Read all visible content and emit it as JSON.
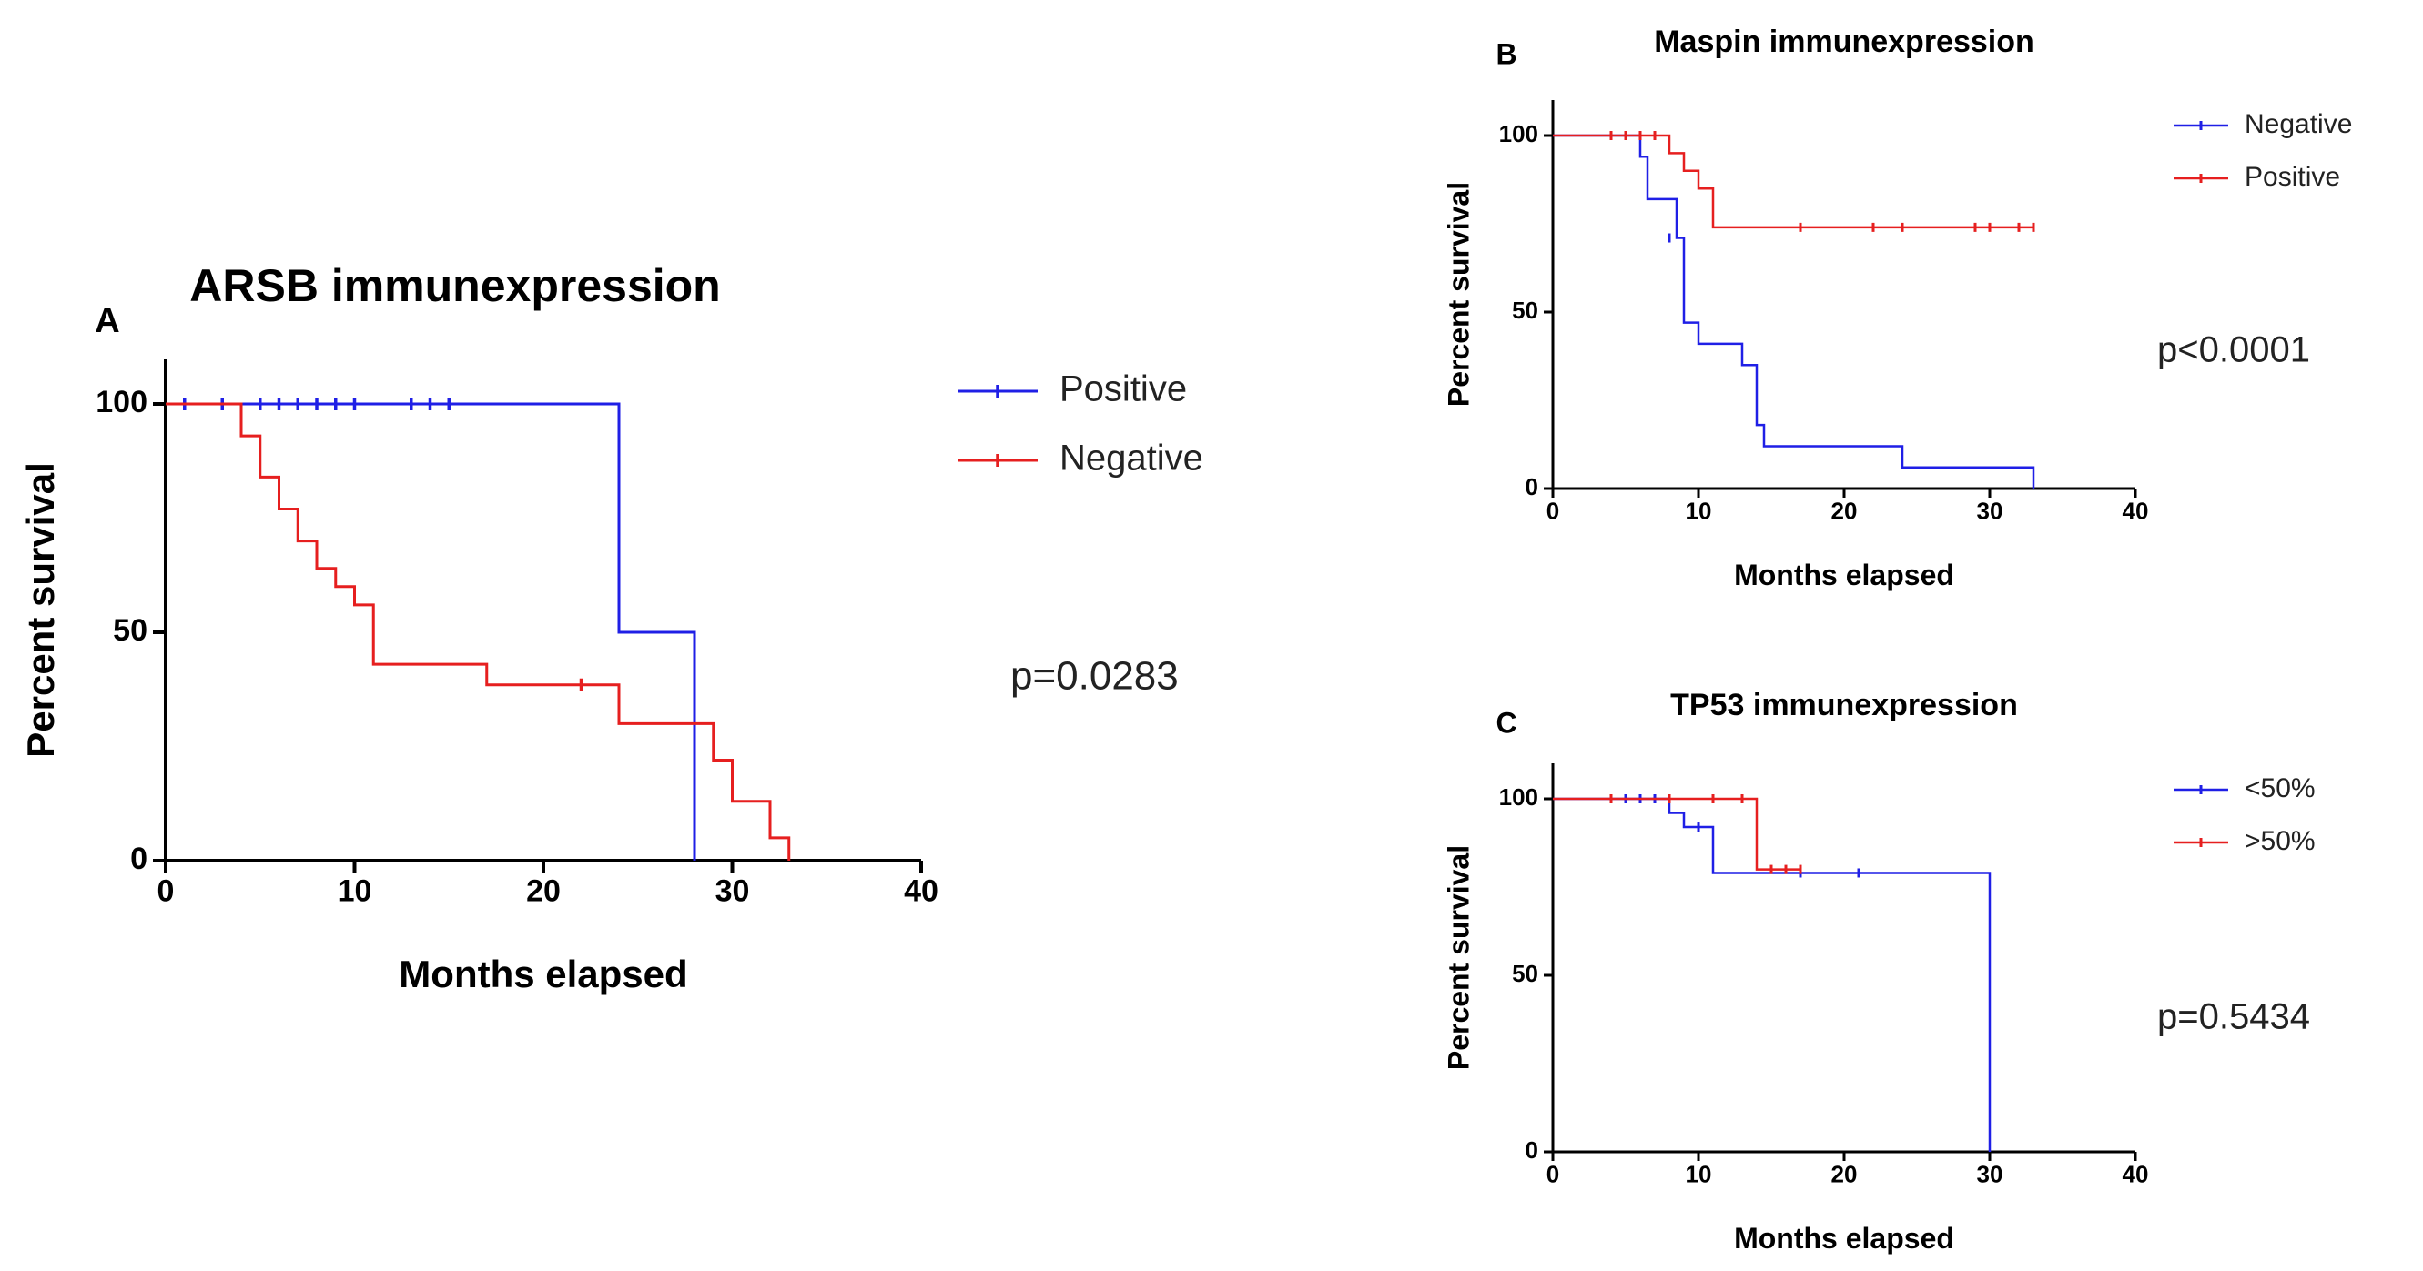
{
  "chart_data": [
    {
      "panel_label": "A",
      "type": "line",
      "step": true,
      "title": "ARSB immunexpression",
      "xlabel": "Months elapsed",
      "ylabel": "Percent survival",
      "xlim": [
        0,
        40
      ],
      "ylim": [
        0,
        110
      ],
      "xticks": [
        "0",
        "10",
        "20",
        "30",
        "40"
      ],
      "yticks": [
        "0",
        "50",
        "100"
      ],
      "pvalue": "p=0.0283",
      "legend_position": "right",
      "series": [
        {
          "name": "Positive",
          "color": "#1f1fe6",
          "steps": [
            [
              0,
              100
            ],
            [
              24,
              50
            ],
            [
              28,
              0
            ]
          ],
          "end_x": 28,
          "censored": [
            [
              1,
              100
            ],
            [
              3,
              100
            ],
            [
              5,
              100
            ],
            [
              6,
              100
            ],
            [
              7,
              100
            ],
            [
              8,
              100
            ],
            [
              9,
              100
            ],
            [
              10,
              100
            ],
            [
              13,
              100
            ],
            [
              14,
              100
            ],
            [
              15,
              100
            ]
          ]
        },
        {
          "name": "Negative",
          "color": "#e61f1f",
          "steps": [
            [
              0,
              100
            ],
            [
              4,
              93
            ],
            [
              5,
              84
            ],
            [
              6,
              77
            ],
            [
              7,
              70
            ],
            [
              8,
              64
            ],
            [
              9,
              60
            ],
            [
              10,
              56
            ],
            [
              11,
              43
            ],
            [
              17,
              38.5
            ],
            [
              24,
              30
            ],
            [
              29,
              22
            ],
            [
              30,
              13
            ],
            [
              32,
              5
            ],
            [
              33,
              0
            ]
          ],
          "end_x": 33,
          "censored": [
            [
              22,
              38.5
            ]
          ]
        }
      ]
    },
    {
      "panel_label": "B",
      "type": "line",
      "step": true,
      "title": "Maspin immunexpression",
      "xlabel": "Months elapsed",
      "ylabel": "Percent survival",
      "xlim": [
        0,
        40
      ],
      "ylim": [
        0,
        110
      ],
      "xticks": [
        "0",
        "10",
        "20",
        "30",
        "40"
      ],
      "yticks": [
        "0",
        "50",
        "100"
      ],
      "pvalue": "p<0.0001",
      "legend_position": "top-right",
      "series": [
        {
          "name": "Negative",
          "color": "#1f1fe6",
          "steps": [
            [
              0,
              100
            ],
            [
              6,
              94
            ],
            [
              6.5,
              82
            ],
            [
              8.5,
              71
            ],
            [
              9,
              47
            ],
            [
              10,
              41
            ],
            [
              13,
              35
            ],
            [
              14,
              18
            ],
            [
              14.5,
              12
            ],
            [
              24,
              6
            ],
            [
              33,
              0
            ]
          ],
          "end_x": 33,
          "censored": [
            [
              8,
              71
            ]
          ]
        },
        {
          "name": "Positive",
          "color": "#e61f1f",
          "steps": [
            [
              0,
              100
            ],
            [
              8,
              95
            ],
            [
              9,
              90
            ],
            [
              10,
              85
            ],
            [
              11,
              74
            ]
          ],
          "end_x": 33,
          "censored": [
            [
              4,
              100
            ],
            [
              5,
              100
            ],
            [
              6,
              100
            ],
            [
              7,
              100
            ],
            [
              17,
              74
            ],
            [
              22,
              74
            ],
            [
              24,
              74
            ],
            [
              29,
              74
            ],
            [
              30,
              74
            ],
            [
              32,
              74
            ],
            [
              33,
              74
            ]
          ]
        }
      ]
    },
    {
      "panel_label": "C",
      "type": "line",
      "step": true,
      "title": "TP53 immunexpression",
      "xlabel": "Months elapsed",
      "ylabel": "Percent survival",
      "xlim": [
        0,
        40
      ],
      "ylim": [
        0,
        110
      ],
      "xticks": [
        "0",
        "10",
        "20",
        "30",
        "40"
      ],
      "yticks": [
        "0",
        "50",
        "100"
      ],
      "pvalue": "p=0.5434",
      "legend_position": "top-right",
      "series": [
        {
          "name": "<50%",
          "color": "#1f1fe6",
          "steps": [
            [
              0,
              100
            ],
            [
              8,
              96
            ],
            [
              9,
              92
            ],
            [
              11,
              79
            ],
            [
              30,
              0
            ]
          ],
          "end_x": 30,
          "censored": [
            [
              5,
              100
            ],
            [
              6,
              100
            ],
            [
              7,
              100
            ],
            [
              10,
              92
            ],
            [
              17,
              79
            ],
            [
              21,
              79
            ]
          ]
        },
        {
          "name": ">50%",
          "color": "#e61f1f",
          "steps": [
            [
              0,
              100
            ],
            [
              14,
              80
            ]
          ],
          "end_x": 17,
          "censored": [
            [
              4,
              100
            ],
            [
              8,
              100
            ],
            [
              11,
              100
            ],
            [
              13,
              100
            ],
            [
              15,
              80
            ],
            [
              16,
              80
            ],
            [
              17,
              80
            ]
          ]
        }
      ]
    }
  ]
}
